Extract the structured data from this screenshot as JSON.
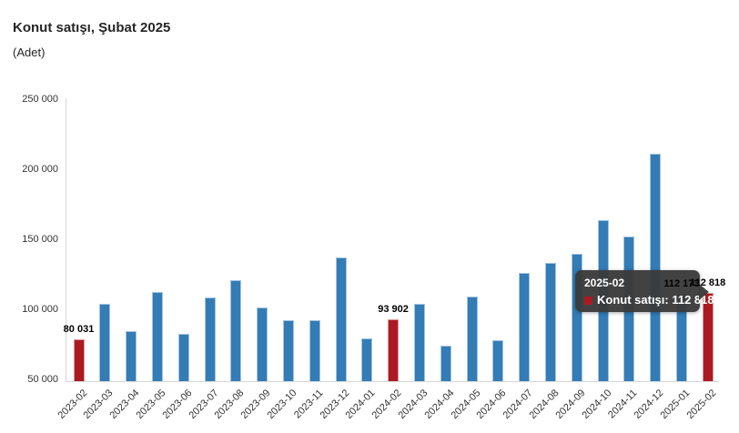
{
  "header": {
    "title": "Konut satışı, Şubat 2025",
    "subtitle": "(Adet)"
  },
  "colors": {
    "bar_blue": "#337CB6",
    "bar_red": "#AB1A22",
    "axis_line": "#D6D6D6",
    "tooltip_bg": "#3A3A3A"
  },
  "tooltip": {
    "title": "2025-02",
    "series_label": "Konut satışı",
    "value": "112 818",
    "text": "Konut satışı: 112 818"
  },
  "chart_data": {
    "type": "bar",
    "title": "Konut satışı, Şubat 2025",
    "ylabel": "(Adet)",
    "xlabel": "",
    "ylim": [
      50000,
      250000
    ],
    "grid": false,
    "legend": false,
    "y_ticks": [
      {
        "label": "250 000",
        "value": 250000
      },
      {
        "label": "200 000",
        "value": 200000
      },
      {
        "label": "150 000",
        "value": 150000
      },
      {
        "label": "100 000",
        "value": 100000
      },
      {
        "label": "50 000",
        "value": 50000
      }
    ],
    "categories": [
      "2023-02",
      "2023-03",
      "2023-04",
      "2023-05",
      "2023-06",
      "2023-07",
      "2023-08",
      "2023-09",
      "2023-10",
      "2023-11",
      "2023-12",
      "2024-01",
      "2024-02",
      "2024-03",
      "2024-04",
      "2024-05",
      "2024-06",
      "2024-07",
      "2024-08",
      "2024-09",
      "2024-10",
      "2024-11",
      "2024-12",
      "2025-01",
      "2025-02"
    ],
    "values": [
      80031,
      105476,
      85652,
      113959,
      83636,
      109548,
      122091,
      102656,
      93761,
      93514,
      138577,
      80308,
      93902,
      105394,
      75569,
      110588,
      79313,
      127088,
      134155,
      140919,
      165138,
      153014,
      212637,
      112173,
      112818
    ],
    "highlighted_categories": [
      "2023-02",
      "2024-02",
      "2025-02"
    ],
    "data_labels": [
      {
        "category": "2023-02",
        "text": "80 031"
      },
      {
        "category": "2024-02",
        "text": "93 902"
      },
      {
        "category": "2025-01",
        "text": "112 173"
      },
      {
        "category": "2025-02",
        "text": "112 818"
      }
    ]
  }
}
